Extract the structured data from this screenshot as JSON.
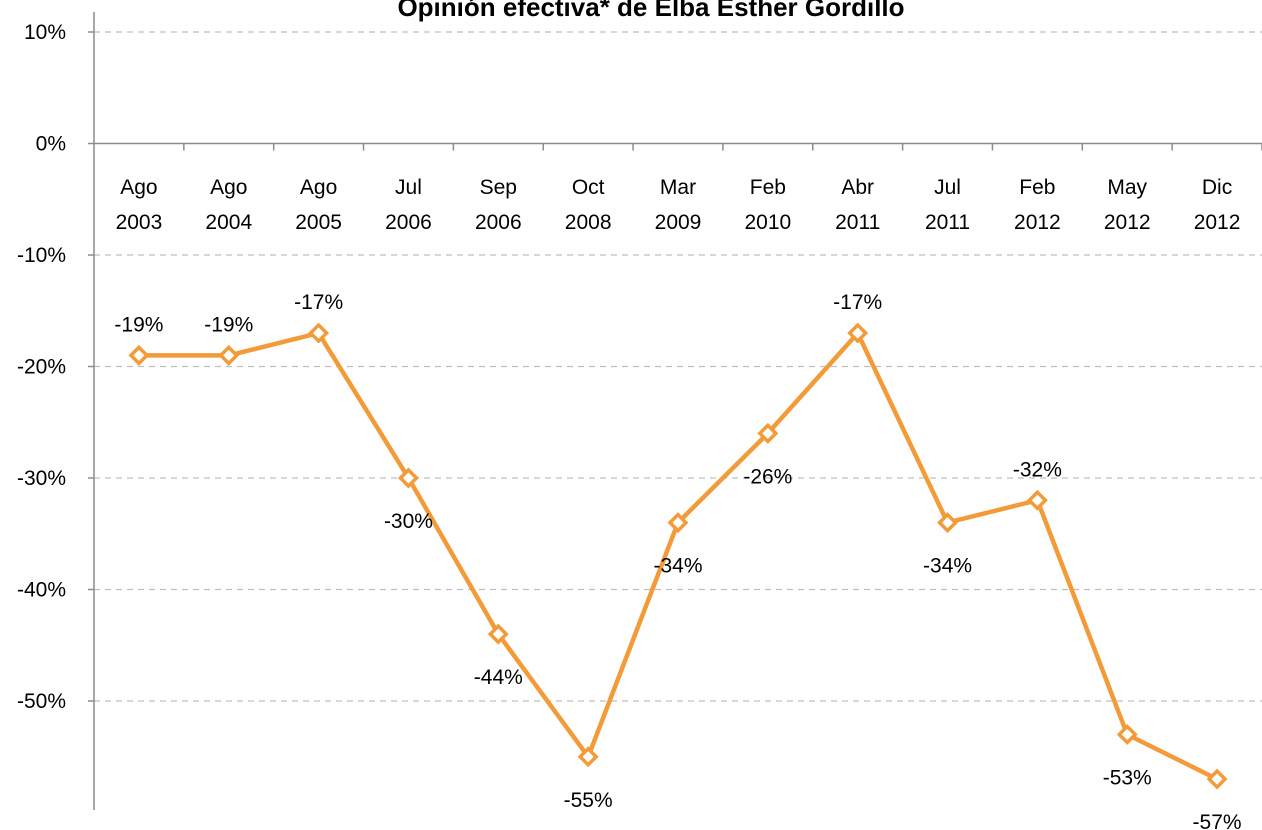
{
  "chart_data": {
    "type": "line",
    "title": "Opinión efectiva* de Elba Esther Gordillo",
    "categories": [
      [
        "Ago",
        "2003"
      ],
      [
        "Ago",
        "2004"
      ],
      [
        "Ago",
        "2005"
      ],
      [
        "Jul",
        "2006"
      ],
      [
        "Sep",
        "2006"
      ],
      [
        "Oct",
        "2008"
      ],
      [
        "Mar",
        "2009"
      ],
      [
        "Feb",
        "2010"
      ],
      [
        "Abr",
        "2011"
      ],
      [
        "Jul",
        "2011"
      ],
      [
        "Feb",
        "2012"
      ],
      [
        "May",
        "2012"
      ],
      [
        "Dic",
        "2012"
      ]
    ],
    "values": [
      -19,
      -19,
      -17,
      -30,
      -44,
      -55,
      -34,
      -26,
      -17,
      -34,
      -32,
      -53,
      -57
    ],
    "data_labels": [
      "-19%",
      "-19%",
      "-17%",
      "-30%",
      "-44%",
      "-55%",
      "-34%",
      "-26%",
      "-17%",
      "-34%",
      "-32%",
      "-53%",
      "-57%"
    ],
    "label_position": [
      "above",
      "above",
      "above",
      "below",
      "below",
      "below",
      "below",
      "below",
      "above",
      "below",
      "above",
      "below",
      "below"
    ],
    "yticks": [
      10,
      0,
      -10,
      -20,
      -30,
      -40,
      -50
    ],
    "ytick_labels": [
      "10%",
      "0%",
      "-10%",
      "-20%",
      "-30%",
      "-40%",
      "-50%"
    ],
    "ylim": [
      -59,
      10
    ],
    "grid": true,
    "marker": "diamond-open",
    "colors": {
      "series": "#f29b38",
      "grid": "#bfbfbf",
      "axis": "#8c8c8c"
    }
  }
}
